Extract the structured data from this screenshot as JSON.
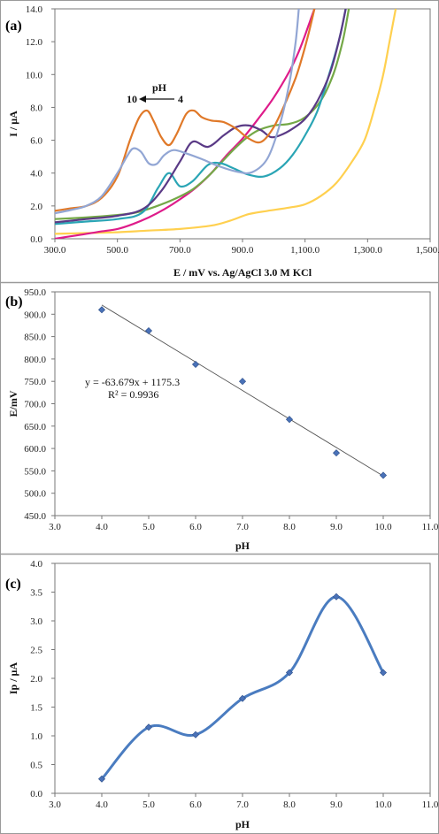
{
  "chart_data": [
    {
      "panel_label": "(a)",
      "type": "line",
      "xlabel": "E / mV vs. Ag/AgCl 3.0 M KCl",
      "ylabel": "I / µA",
      "xlim": [
        300,
        1500
      ],
      "ylim": [
        0,
        14
      ],
      "x_ticks": [
        "300.0",
        "500.0",
        "700.0",
        "900.0",
        "1,100.0",
        "1,300.0",
        "1,500.0"
      ],
      "y_ticks": [
        "0.0",
        "2.0",
        "4.0",
        "6.0",
        "8.0",
        "10.0",
        "12.0",
        "14.0"
      ],
      "grid": false,
      "annotation": {
        "label": "pH",
        "from": "10",
        "to": "4"
      },
      "series": [
        {
          "color": "#ffd04f",
          "x": [
            300,
            400,
            500,
            600,
            700,
            800,
            860,
            920,
            980,
            1050,
            1100,
            1150,
            1200,
            1250,
            1290,
            1320,
            1350,
            1370,
            1390
          ],
          "y": [
            0.3,
            0.35,
            0.4,
            0.5,
            0.6,
            0.8,
            1.1,
            1.5,
            1.7,
            1.9,
            2.1,
            2.6,
            3.4,
            4.7,
            6.0,
            7.8,
            10.0,
            12.0,
            14.0
          ]
        },
        {
          "color": "#de1b8a",
          "x": [
            300,
            350,
            400,
            450,
            500,
            550,
            600,
            650,
            700,
            750,
            800,
            850,
            900,
            950,
            1000,
            1050,
            1080,
            1100,
            1115,
            1130
          ],
          "y": [
            0.0,
            0.15,
            0.3,
            0.45,
            0.6,
            0.9,
            1.3,
            1.8,
            2.4,
            3.1,
            4.0,
            5.1,
            6.1,
            7.3,
            8.6,
            10.2,
            11.4,
            12.4,
            13.2,
            14.0
          ]
        },
        {
          "color": "#74a847",
          "x": [
            300,
            400,
            500,
            560,
            620,
            680,
            740,
            790,
            830,
            870,
            910,
            950,
            1000,
            1050,
            1100,
            1150,
            1190,
            1220,
            1240
          ],
          "y": [
            1.2,
            1.3,
            1.45,
            1.6,
            1.95,
            2.4,
            3.0,
            3.8,
            4.6,
            5.4,
            6.1,
            6.6,
            6.9,
            7.0,
            7.4,
            8.4,
            10.0,
            12.0,
            14.0
          ]
        },
        {
          "color": "#2aa5b5",
          "x": [
            300,
            400,
            500,
            580,
            630,
            665,
            700,
            740,
            790,
            830,
            870,
            920,
            970,
            1020,
            1060,
            1100,
            1140,
            1180,
            1210,
            1230
          ],
          "y": [
            0.9,
            1.05,
            1.2,
            1.6,
            3.1,
            4.0,
            3.2,
            3.5,
            4.5,
            4.6,
            4.3,
            3.9,
            3.8,
            4.3,
            5.1,
            6.3,
            7.8,
            10.2,
            12.2,
            14.0
          ]
        },
        {
          "color": "#5a3a86",
          "x": [
            300,
            400,
            500,
            580,
            640,
            700,
            740,
            790,
            840,
            880,
            920,
            960,
            990,
            1020,
            1060,
            1100,
            1140,
            1180,
            1210,
            1230
          ],
          "y": [
            1.0,
            1.2,
            1.4,
            1.8,
            2.9,
            4.7,
            5.9,
            5.6,
            6.3,
            6.8,
            6.9,
            6.6,
            6.2,
            6.3,
            6.7,
            7.3,
            8.4,
            10.1,
            12.2,
            14.0
          ]
        },
        {
          "color": "#e07929",
          "x": [
            300,
            350,
            400,
            450,
            500,
            540,
            570,
            595,
            615,
            640,
            665,
            690,
            720,
            745,
            770,
            800,
            840,
            880,
            920,
            960,
            1000,
            1040,
            1070,
            1090,
            1110,
            1130
          ],
          "y": [
            1.7,
            1.85,
            2.0,
            2.5,
            3.8,
            6.0,
            7.4,
            7.8,
            7.2,
            6.2,
            5.7,
            6.4,
            7.6,
            7.8,
            7.4,
            7.2,
            7.1,
            6.7,
            6.1,
            5.9,
            6.8,
            8.4,
            9.8,
            11.0,
            12.4,
            14.0
          ]
        },
        {
          "color": "#92a6d4",
          "x": [
            300,
            350,
            400,
            450,
            500,
            530,
            550,
            575,
            600,
            625,
            650,
            680,
            720,
            770,
            820,
            880,
            930,
            980,
            1020,
            1050,
            1070,
            1080
          ],
          "y": [
            1.55,
            1.75,
            2.0,
            2.6,
            4.0,
            5.0,
            5.5,
            5.3,
            4.6,
            4.55,
            5.1,
            5.4,
            5.2,
            4.85,
            4.45,
            4.1,
            4.05,
            4.9,
            7.0,
            9.5,
            12.0,
            14.0
          ]
        }
      ]
    },
    {
      "panel_label": "(b)",
      "type": "scatter",
      "xlabel": "pH",
      "ylabel": "E/mV",
      "xlim": [
        3,
        11
      ],
      "ylim": [
        450,
        950
      ],
      "x_ticks": [
        "3.0",
        "4.0",
        "5.0",
        "6.0",
        "7.0",
        "8.0",
        "9.0",
        "10.0",
        "11.0"
      ],
      "y_ticks": [
        "450.0",
        "500.0",
        "550.0",
        "600.0",
        "650.0",
        "700.0",
        "750.0",
        "800.0",
        "850.0",
        "900.0",
        "950.0"
      ],
      "grid": false,
      "x": [
        4,
        5,
        6,
        7,
        8,
        9,
        10
      ],
      "y": [
        910,
        863,
        788,
        750,
        665,
        590,
        540
      ],
      "trendline": {
        "slope": -63.679,
        "intercept": 1175.3
      },
      "equation": "y = -63.679x + 1175.3",
      "r_squared": "R² = 0.9936"
    },
    {
      "panel_label": "(c)",
      "type": "line",
      "xlabel": "pH",
      "ylabel": "Ip / µA",
      "xlim": [
        3,
        11
      ],
      "ylim": [
        0,
        4
      ],
      "x_ticks": [
        "3.0",
        "4.0",
        "5.0",
        "6.0",
        "7.0",
        "8.0",
        "9.0",
        "10.0",
        "11.0"
      ],
      "y_ticks": [
        "0.0",
        "0.5",
        "1.0",
        "1.5",
        "2.0",
        "2.5",
        "3.0",
        "3.5",
        "4.0"
      ],
      "grid": false,
      "smooth": true,
      "x": [
        4,
        5,
        6,
        7,
        8,
        9,
        10
      ],
      "y": [
        0.25,
        1.15,
        1.02,
        1.65,
        2.1,
        3.42,
        2.1
      ]
    }
  ],
  "colors": {
    "trendline": "#555555",
    "marker": "#4a72b8",
    "curve_c": "#4a7cc0"
  }
}
